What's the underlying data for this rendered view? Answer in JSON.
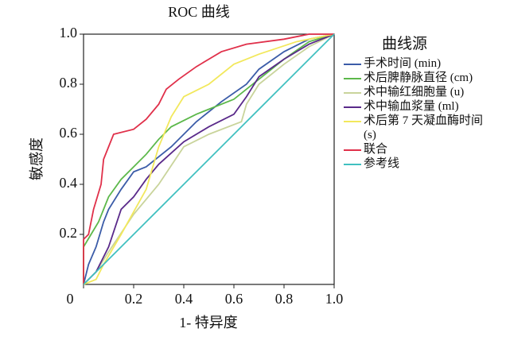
{
  "chart_data": {
    "type": "line",
    "title": "ROC 曲线",
    "x_label": "1- 特异度",
    "y_label": "敏感度",
    "legend_title": "曲线源",
    "xlim": [
      0,
      1
    ],
    "ylim": [
      0,
      1
    ],
    "xticks": [
      0,
      0.2,
      0.4,
      0.6,
      0.8,
      {
        "value": 1,
        "label": "1.0"
      }
    ],
    "yticks": [
      0.2,
      0.4,
      0.6,
      0.8,
      {
        "value": 1,
        "label": "1.0"
      }
    ],
    "legend": "right",
    "series": [
      {
        "name": "手术时间 (min)",
        "color": "#3b5ca8",
        "x": [
          0,
          0.02,
          0.05,
          0.08,
          0.1,
          0.15,
          0.2,
          0.25,
          0.35,
          0.45,
          0.55,
          0.65,
          0.7,
          0.8,
          0.9,
          1
        ],
        "values": [
          0,
          0.08,
          0.15,
          0.25,
          0.3,
          0.38,
          0.45,
          0.47,
          0.55,
          0.65,
          0.73,
          0.8,
          0.86,
          0.93,
          0.98,
          1
        ]
      },
      {
        "name": "术后脾静脉直径 (cm)",
        "color": "#5cb84a",
        "x": [
          0,
          0,
          0.03,
          0.06,
          0.08,
          0.1,
          0.15,
          0.2,
          0.25,
          0.3,
          0.35,
          0.45,
          0.6,
          0.7,
          0.8,
          0.9,
          1
        ],
        "values": [
          0,
          0.15,
          0.2,
          0.25,
          0.3,
          0.35,
          0.42,
          0.47,
          0.52,
          0.58,
          0.63,
          0.68,
          0.74,
          0.82,
          0.9,
          0.97,
          1
        ]
      },
      {
        "name": "术中输红细胞量 (u)",
        "color": "#c9d49b",
        "x": [
          0,
          0.05,
          0.1,
          0.2,
          0.3,
          0.4,
          0.5,
          0.63,
          0.65,
          0.7,
          0.8,
          0.9,
          1
        ],
        "values": [
          0,
          0.05,
          0.13,
          0.28,
          0.4,
          0.55,
          0.6,
          0.65,
          0.72,
          0.8,
          0.88,
          0.95,
          1
        ]
      },
      {
        "name": "术中输血浆量 (ml)",
        "color": "#5a2a8a",
        "x": [
          0,
          0.05,
          0.1,
          0.15,
          0.2,
          0.25,
          0.3,
          0.4,
          0.5,
          0.6,
          0.65,
          0.7,
          0.8,
          0.9,
          1
        ],
        "values": [
          0,
          0.05,
          0.15,
          0.3,
          0.35,
          0.42,
          0.48,
          0.57,
          0.63,
          0.68,
          0.75,
          0.83,
          0.9,
          0.96,
          1
        ]
      },
      {
        "name": "术后第 7 天凝血酶时间 (s)",
        "color": "#f2e85c",
        "x": [
          0,
          0.05,
          0.08,
          0.15,
          0.25,
          0.3,
          0.35,
          0.4,
          0.5,
          0.6,
          0.7,
          0.85,
          1
        ],
        "values": [
          0,
          0.02,
          0.08,
          0.2,
          0.38,
          0.55,
          0.67,
          0.75,
          0.8,
          0.88,
          0.92,
          0.97,
          1
        ]
      },
      {
        "name": "联合",
        "color": "#e0304a",
        "x": [
          0,
          0,
          0.02,
          0.04,
          0.07,
          0.08,
          0.1,
          0.12,
          0.2,
          0.25,
          0.3,
          0.33,
          0.38,
          0.45,
          0.5,
          0.55,
          0.65,
          0.8,
          0.9,
          1
        ],
        "values": [
          0,
          0.18,
          0.2,
          0.3,
          0.4,
          0.5,
          0.55,
          0.6,
          0.62,
          0.66,
          0.72,
          0.78,
          0.82,
          0.87,
          0.9,
          0.93,
          0.96,
          0.98,
          1,
          1
        ]
      },
      {
        "name": "参考线",
        "color": "#40c0c0",
        "x": [
          0,
          1
        ],
        "values": [
          0,
          1
        ]
      }
    ]
  }
}
